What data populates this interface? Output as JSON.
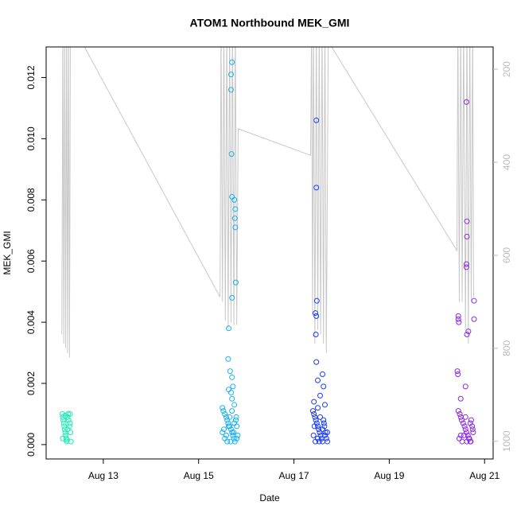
{
  "chart_data": {
    "type": "scatter",
    "title": "ATOM1 Northbound MEK_GMI",
    "x_label": "Date",
    "y_label": "MEK_GMI",
    "xlim": [
      11.8,
      21.18
    ],
    "ylim": [
      -0.00047,
      0.013
    ],
    "y2lim": [
      1038,
      152
    ],
    "xticks": [
      {
        "value": 13,
        "label": "Aug 13"
      },
      {
        "value": 15,
        "label": "Aug 15"
      },
      {
        "value": 17,
        "label": "Aug 17"
      },
      {
        "value": 19,
        "label": "Aug 19"
      },
      {
        "value": 21,
        "label": "Aug 21"
      }
    ],
    "yticks": [
      {
        "value": 0,
        "label": "0.000"
      },
      {
        "value": 0.002,
        "label": "0.002"
      },
      {
        "value": 0.004,
        "label": "0.004"
      },
      {
        "value": 0.006,
        "label": "0.006"
      },
      {
        "value": 0.008,
        "label": "0.008"
      },
      {
        "value": 0.01,
        "label": "0.010"
      },
      {
        "value": 0.012,
        "label": "0.012"
      }
    ],
    "y2ticks": [
      200,
      400,
      600,
      800,
      1000
    ],
    "series": [
      {
        "color": "#1de9b6",
        "x": [
          12.14,
          12.15,
          12.16,
          12.17,
          12.18,
          12.19,
          12.2,
          12.21,
          12.22,
          12.23,
          12.24,
          12.25,
          12.26,
          12.27,
          12.29,
          12.3,
          12.31,
          12.32,
          12.15,
          12.2,
          12.25,
          12.3
        ],
        "values": [
          0.001,
          0.0009,
          0.0008,
          0.0007,
          0.0006,
          0.0005,
          0.0004,
          0.0003,
          0.0002,
          0.0001,
          0.00015,
          0.0009,
          0.001,
          0.0008,
          0.0006,
          0.001,
          0.0004,
          0.0001,
          0.0002,
          0.00095,
          0.0005,
          0.0007
        ]
      },
      {
        "color": "#1ab2f0",
        "x": [
          15.7,
          15.68,
          15.68,
          15.69,
          15.7,
          15.75,
          15.77,
          15.76,
          15.77,
          15.78,
          15.7,
          15.63,
          15.62,
          15.66,
          15.7,
          15.72,
          15.63,
          15.68,
          15.7,
          15.75,
          15.5,
          15.52,
          15.55,
          15.58,
          15.6,
          15.62,
          15.65,
          15.68,
          15.7,
          15.72,
          15.74,
          15.76,
          15.78,
          15.8,
          15.82,
          15.5,
          15.55,
          15.6,
          15.65,
          15.7,
          15.75,
          15.8,
          15.53,
          15.58,
          15.63,
          15.67,
          15.73,
          15.79
        ],
        "values": [
          0.0125,
          0.0121,
          0.0116,
          0.0095,
          0.0081,
          0.008,
          0.0077,
          0.0074,
          0.0071,
          0.0053,
          0.0048,
          0.0038,
          0.0028,
          0.0024,
          0.0022,
          0.0019,
          0.0018,
          0.0017,
          0.0015,
          0.0013,
          0.0012,
          0.0011,
          0.001,
          0.0009,
          0.0008,
          0.0007,
          0.0006,
          0.0005,
          0.0004,
          0.0003,
          0.0002,
          0.0001,
          0.0008,
          0.0006,
          0.0003,
          0.0004,
          0.0002,
          0.0001,
          0.0009,
          0.0011,
          0.0007,
          0.0002,
          0.0005,
          0.0003,
          0.0006,
          0.0001,
          0.0004,
          0.0009
        ]
      },
      {
        "color": "#1a3cf0",
        "x": [
          17.47,
          17.47,
          17.48,
          17.45,
          17.47,
          17.46,
          17.47,
          17.6,
          17.5,
          17.62,
          17.55,
          17.42,
          17.65,
          17.5,
          17.4,
          17.42,
          17.44,
          17.46,
          17.48,
          17.5,
          17.52,
          17.54,
          17.56,
          17.58,
          17.6,
          17.62,
          17.64,
          17.66,
          17.68,
          17.7,
          17.41,
          17.45,
          17.5,
          17.55,
          17.6,
          17.65,
          17.7,
          17.43,
          17.53,
          17.63
        ],
        "values": [
          0.0106,
          0.0084,
          0.0047,
          0.0043,
          0.0042,
          0.0036,
          0.0027,
          0.0023,
          0.0021,
          0.0019,
          0.0016,
          0.0014,
          0.0013,
          0.0012,
          0.0011,
          0.001,
          0.0009,
          0.0008,
          0.0007,
          0.0006,
          0.0005,
          0.0004,
          0.0003,
          0.0002,
          0.0001,
          0.0008,
          0.0006,
          0.0004,
          0.0002,
          0.0001,
          0.0003,
          0.0001,
          0.0002,
          0.0009,
          0.0005,
          0.0003,
          0.0004,
          0.0006,
          0.0001,
          0.0007
        ]
      },
      {
        "color": "#8a2be2",
        "x": [
          20.62,
          20.63,
          20.63,
          20.62,
          20.62,
          20.78,
          20.78,
          20.45,
          20.45,
          20.46,
          20.66,
          20.63,
          20.43,
          20.44,
          20.6,
          20.5,
          20.45,
          20.48,
          20.5,
          20.52,
          20.55,
          20.58,
          20.6,
          20.62,
          20.65,
          20.68,
          20.7,
          20.72,
          20.74,
          20.76,
          20.47,
          20.53,
          20.57,
          20.63,
          20.67,
          20.71,
          20.75,
          20.5,
          20.6,
          20.7
        ],
        "values": [
          0.0112,
          0.0073,
          0.0068,
          0.0059,
          0.0058,
          0.0047,
          0.0041,
          0.0042,
          0.0041,
          0.004,
          0.0037,
          0.0036,
          0.0024,
          0.0023,
          0.0019,
          0.0015,
          0.0011,
          0.001,
          0.0009,
          0.0008,
          0.0007,
          0.0006,
          0.0005,
          0.0004,
          0.0003,
          0.0002,
          0.0001,
          0.0008,
          0.0006,
          0.0004,
          0.0002,
          0.0001,
          0.0003,
          0.0001,
          0.0002,
          0.0001,
          0.0005,
          0.0003,
          0.0009,
          0.0007
        ]
      },
      {
        "type": "line",
        "axis": "y2",
        "color": "#c8c8c8",
        "x": [
          12.13,
          12.15,
          12.17,
          12.19,
          12.21,
          12.23,
          12.25,
          12.27,
          12.29,
          12.31,
          12.33,
          15.45,
          15.47,
          15.5,
          15.53,
          15.56,
          15.59,
          15.62,
          15.65,
          15.68,
          15.71,
          15.74,
          15.77,
          15.8,
          15.83,
          17.35,
          17.37,
          17.39,
          17.41,
          17.44,
          17.47,
          17.5,
          17.53,
          17.56,
          17.59,
          17.62,
          17.65,
          17.68,
          17.72,
          20.42,
          20.44,
          20.47,
          20.5,
          20.53,
          20.56,
          20.6,
          20.63,
          20.66,
          20.69,
          20.72,
          20.75,
          20.77
        ],
        "values": [
          770,
          100,
          790,
          100,
          800,
          100,
          810,
          100,
          820,
          100,
          100,
          690,
          100,
          700,
          100,
          740,
          100,
          760,
          100,
          745,
          100,
          750,
          100,
          750,
          328,
          385,
          100,
          730,
          100,
          790,
          100,
          760,
          100,
          770,
          100,
          790,
          100,
          810,
          140,
          590,
          100,
          700,
          100,
          700,
          100,
          760,
          100,
          790,
          100,
          700,
          100,
          690
        ]
      }
    ]
  }
}
